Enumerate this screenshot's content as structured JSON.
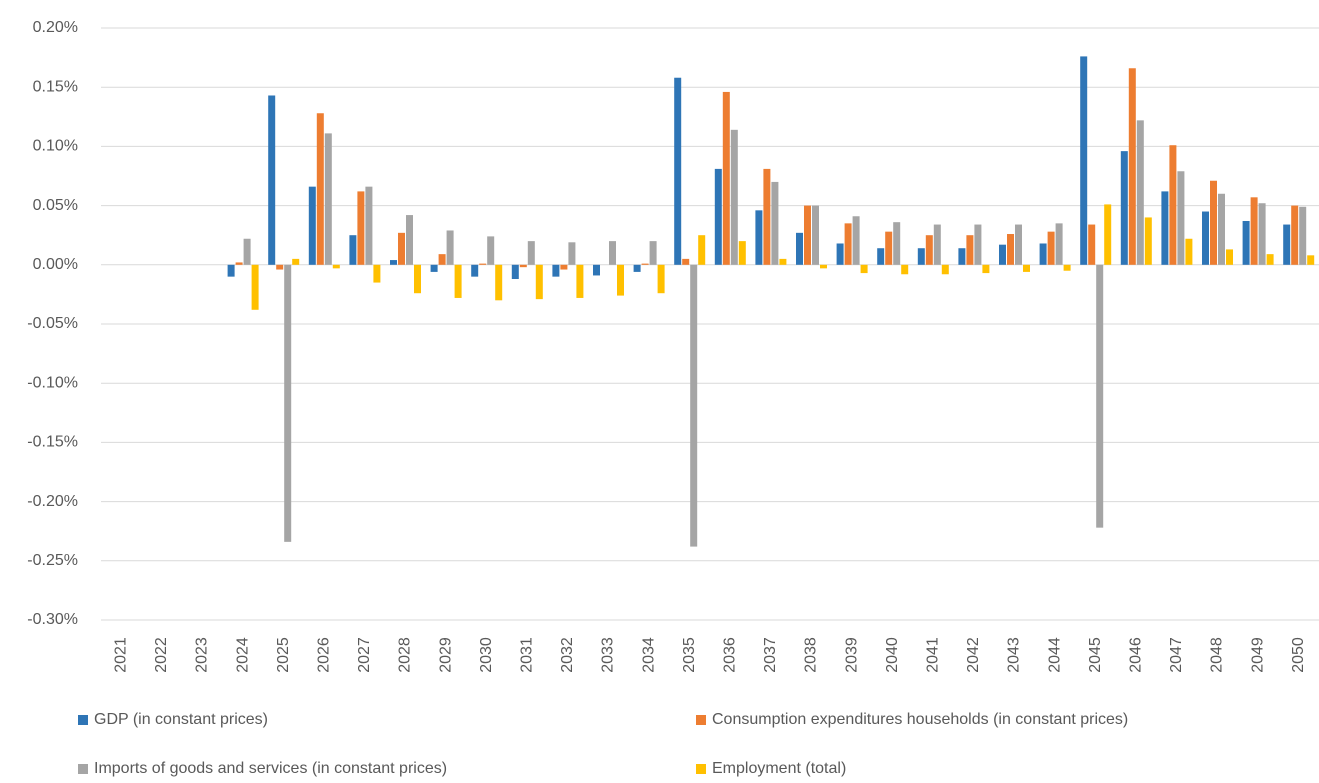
{
  "chart_data": {
    "type": "bar",
    "categories": [
      "2021",
      "2022",
      "2023",
      "2024",
      "2025",
      "2026",
      "2027",
      "2028",
      "2029",
      "2030",
      "2031",
      "2032",
      "2033",
      "2034",
      "2035",
      "2036",
      "2037",
      "2038",
      "2039",
      "2040",
      "2041",
      "2042",
      "2043",
      "2044",
      "2045",
      "2046",
      "2047",
      "2048",
      "2049",
      "2050"
    ],
    "series": [
      {
        "name": "GDP (in constant prices)",
        "color": "#2E75B6",
        "values": [
          null,
          null,
          null,
          -0.01,
          0.143,
          0.066,
          0.025,
          0.004,
          -0.006,
          -0.01,
          -0.012,
          -0.01,
          -0.009,
          -0.006,
          0.158,
          0.081,
          0.046,
          0.027,
          0.018,
          0.014,
          0.014,
          0.014,
          0.017,
          0.018,
          0.176,
          0.096,
          0.062,
          0.045,
          0.037,
          0.034
        ]
      },
      {
        "name": "Consumption expenditures households (in constant prices)",
        "color": "#ED7D31",
        "values": [
          null,
          null,
          null,
          0.002,
          -0.004,
          0.128,
          0.062,
          0.027,
          0.009,
          0.001,
          -0.002,
          -0.004,
          0.0,
          0.001,
          0.005,
          0.146,
          0.081,
          0.05,
          0.035,
          0.028,
          0.025,
          0.025,
          0.026,
          0.028,
          0.034,
          0.166,
          0.101,
          0.071,
          0.057,
          0.05
        ]
      },
      {
        "name": "Imports of goods and services (in constant prices)",
        "color": "#A5A5A5",
        "values": [
          null,
          null,
          null,
          0.022,
          -0.234,
          0.111,
          0.066,
          0.042,
          0.029,
          0.024,
          0.02,
          0.019,
          0.02,
          0.02,
          -0.238,
          0.114,
          0.07,
          0.05,
          0.041,
          0.036,
          0.034,
          0.034,
          0.034,
          0.035,
          -0.222,
          0.122,
          0.079,
          0.06,
          0.052,
          0.049
        ]
      },
      {
        "name": "Employment (total)",
        "color": "#FFC000",
        "values": [
          null,
          null,
          null,
          -0.038,
          0.005,
          -0.003,
          -0.015,
          -0.024,
          -0.028,
          -0.03,
          -0.029,
          -0.028,
          -0.026,
          -0.024,
          0.025,
          0.02,
          0.005,
          -0.003,
          -0.007,
          -0.008,
          -0.008,
          -0.007,
          -0.006,
          -0.005,
          0.051,
          0.04,
          0.022,
          0.013,
          0.009,
          0.008
        ]
      }
    ],
    "ylim": [
      -0.3,
      0.2
    ],
    "yticks": [
      {
        "value": -0.3,
        "label": "-0.30%"
      },
      {
        "value": -0.25,
        "label": "-0.25%"
      },
      {
        "value": -0.2,
        "label": "-0.20%"
      },
      {
        "value": -0.15,
        "label": "-0.15%"
      },
      {
        "value": -0.1,
        "label": "-0.10%"
      },
      {
        "value": -0.05,
        "label": "-0.05%"
      },
      {
        "value": 0,
        "label": "0.00%"
      },
      {
        "value": 0.05,
        "label": "0.05%"
      },
      {
        "value": 0.1,
        "label": "0.10%"
      },
      {
        "value": 0.15,
        "label": "0.15%"
      },
      {
        "value": 0.2,
        "label": "0.20%"
      }
    ],
    "grid": true
  }
}
